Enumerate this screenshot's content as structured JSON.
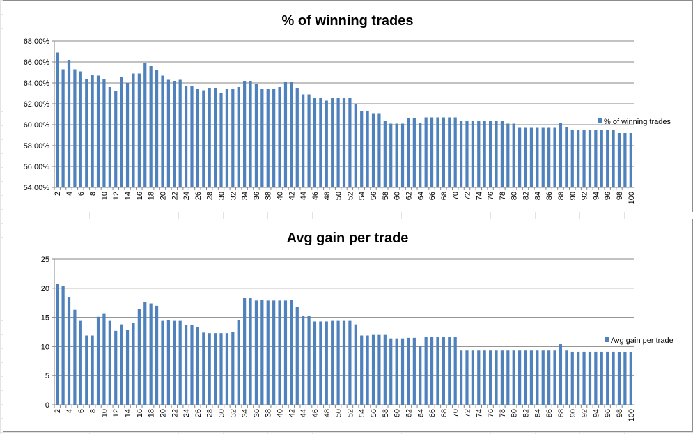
{
  "chart_data": [
    {
      "type": "bar",
      "title": "% of winning trades",
      "xlabel": "",
      "ylabel": "",
      "ylim": [
        0.54,
        0.68
      ],
      "y_ticks": [
        "54.00%",
        "56.00%",
        "58.00%",
        "60.00%",
        "62.00%",
        "64.00%",
        "66.00%",
        "68.00%"
      ],
      "y_tick_values": [
        0.54,
        0.56,
        0.58,
        0.6,
        0.62,
        0.64,
        0.66,
        0.68
      ],
      "x_start": 2,
      "x_end": 100,
      "x_tick_step": 2,
      "grid": true,
      "legend_position": "right",
      "bar_color": "#4f81bd",
      "series": [
        {
          "name": "% of winning trades",
          "values": [
            0.669,
            0.653,
            0.662,
            0.653,
            0.651,
            0.644,
            0.648,
            0.647,
            0.644,
            0.636,
            0.632,
            0.646,
            0.64,
            0.649,
            0.649,
            0.659,
            0.656,
            0.652,
            0.647,
            0.643,
            0.642,
            0.643,
            0.637,
            0.637,
            0.634,
            0.633,
            0.635,
            0.635,
            0.63,
            0.634,
            0.634,
            0.636,
            0.642,
            0.642,
            0.639,
            0.634,
            0.634,
            0.634,
            0.636,
            0.641,
            0.641,
            0.635,
            0.629,
            0.629,
            0.626,
            0.626,
            0.623,
            0.626,
            0.626,
            0.626,
            0.626,
            0.62,
            0.613,
            0.613,
            0.611,
            0.611,
            0.604,
            0.601,
            0.601,
            0.601,
            0.606,
            0.606,
            0.602,
            0.607,
            0.607,
            0.607,
            0.607,
            0.607,
            0.607,
            0.604,
            0.604,
            0.604,
            0.604,
            0.604,
            0.604,
            0.604,
            0.604,
            0.601,
            0.601,
            0.597,
            0.597,
            0.597,
            0.597,
            0.597,
            0.597,
            0.597,
            0.602,
            0.598,
            0.595,
            0.595,
            0.595,
            0.595,
            0.595,
            0.595,
            0.595,
            0.595,
            0.592,
            0.592,
            0.592
          ]
        }
      ]
    },
    {
      "type": "bar",
      "title": "Avg gain per trade",
      "xlabel": "",
      "ylabel": "",
      "ylim": [
        0,
        25
      ],
      "y_ticks": [
        "0",
        "5",
        "10",
        "15",
        "20",
        "25"
      ],
      "y_tick_values": [
        0,
        5,
        10,
        15,
        20,
        25
      ],
      "x_start": 2,
      "x_end": 100,
      "x_tick_step": 2,
      "grid": true,
      "legend_position": "right",
      "bar_color": "#4f81bd",
      "series": [
        {
          "name": "Avg gain per trade",
          "values": [
            20.8,
            20.4,
            18.5,
            16.3,
            14.4,
            11.9,
            11.9,
            15.1,
            15.6,
            14.4,
            12.7,
            13.8,
            12.8,
            14.0,
            16.5,
            17.6,
            17.4,
            17.0,
            14.4,
            14.5,
            14.4,
            14.4,
            13.7,
            13.7,
            13.4,
            12.4,
            12.3,
            12.3,
            12.3,
            12.3,
            12.5,
            14.5,
            18.3,
            18.3,
            17.9,
            18.0,
            17.9,
            17.9,
            17.9,
            17.9,
            18.0,
            16.8,
            15.2,
            15.2,
            14.3,
            14.3,
            14.3,
            14.4,
            14.4,
            14.4,
            14.4,
            13.8,
            11.9,
            11.9,
            12.0,
            12.0,
            12.0,
            11.4,
            11.4,
            11.4,
            11.5,
            11.5,
            10.1,
            11.6,
            11.6,
            11.6,
            11.6,
            11.6,
            11.6,
            9.3,
            9.3,
            9.3,
            9.3,
            9.3,
            9.3,
            9.3,
            9.3,
            9.3,
            9.3,
            9.3,
            9.3,
            9.3,
            9.3,
            9.3,
            9.3,
            9.3,
            10.4,
            9.3,
            9.1,
            9.1,
            9.1,
            9.1,
            9.1,
            9.1,
            9.1,
            9.1,
            9.0,
            9.0,
            9.0
          ]
        }
      ]
    }
  ]
}
